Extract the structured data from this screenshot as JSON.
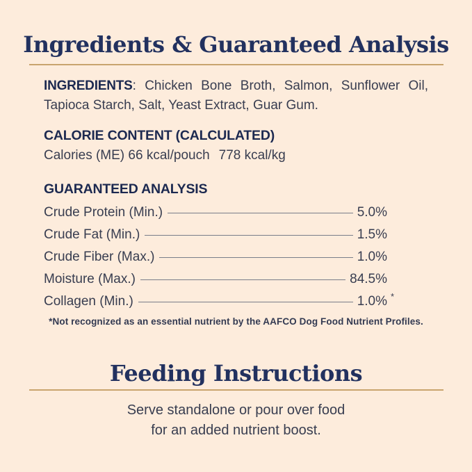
{
  "label": {
    "colors": {
      "background": "#fdecdc",
      "title_navy": "#22315f",
      "heading_navy": "#1c2950",
      "body_text": "#383d50",
      "gold_rule": "#c9a46e",
      "leader_line": "#787d89"
    },
    "ingredients_section": {
      "title": "Ingredients & Guaranteed Analysis",
      "ingredients_label": "INGREDIENTS",
      "ingredients_line1_rest": ": Chicken Bone Broth, Salmon, Sunflower Oil,",
      "ingredients_line2": "Tapioca Starch, Salt, Yeast Extract, Guar Gum.",
      "calorie_heading": "CALORIE CONTENT (CALCULATED)",
      "calorie_value_pouch": "Calories (ME) 66 kcal/pouch",
      "calorie_value_kg": "778 kcal/kg",
      "analysis_heading": "GUARANTEED ANALYSIS",
      "analysis_rows": [
        {
          "label": "Crude Protein (Min.)",
          "value": "5.0%",
          "mark": ""
        },
        {
          "label": "Crude Fat (Min.)",
          "value": "1.5%",
          "mark": ""
        },
        {
          "label": "Crude Fiber (Max.)",
          "value": "1.0%",
          "mark": ""
        },
        {
          "label": "Moisture (Max.)",
          "value": "84.5%",
          "mark": ""
        },
        {
          "label": "Collagen (Min.)",
          "value": "1.0%",
          "mark": "*"
        }
      ],
      "footnote": "*Not recognized as an essential nutrient by the AAFCO Dog Food Nutrient Profiles."
    },
    "feeding_section": {
      "title": "Feeding Instructions",
      "instruction_line1": "Serve standalone or pour over food",
      "instruction_line2": "for an added nutrient boost."
    }
  }
}
